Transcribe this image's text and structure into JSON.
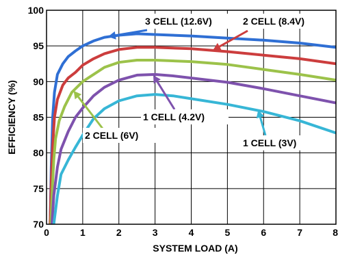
{
  "chart_data": {
    "type": "line",
    "title": "",
    "xlabel": "SYSTEM LOAD (A)",
    "ylabel": "EFFICIENCY (%)",
    "xlim": [
      0,
      8
    ],
    "ylim": [
      70,
      100
    ],
    "xticks": [
      "0",
      "1",
      "2",
      "3",
      "4",
      "5",
      "6",
      "7",
      "8"
    ],
    "yticks": [
      "70",
      "75",
      "80",
      "85",
      "90",
      "95",
      "100"
    ],
    "grid": true,
    "series": [
      {
        "name": "3 CELL (12.6V)",
        "color": "#2f6fd4",
        "points": [
          [
            0.1,
            70
          ],
          [
            0.13,
            78
          ],
          [
            0.17,
            85
          ],
          [
            0.22,
            88.5
          ],
          [
            0.3,
            91
          ],
          [
            0.45,
            92.5
          ],
          [
            0.6,
            93.5
          ],
          [
            0.8,
            94.3
          ],
          [
            1.0,
            95
          ],
          [
            1.3,
            95.7
          ],
          [
            1.6,
            96.2
          ],
          [
            2.0,
            96.5
          ],
          [
            2.5,
            96.7
          ],
          [
            3.0,
            96.6
          ],
          [
            4.0,
            96.4
          ],
          [
            5.0,
            96.1
          ],
          [
            6.0,
            95.8
          ],
          [
            7.0,
            95.4
          ],
          [
            8.0,
            94.8
          ]
        ]
      },
      {
        "name": "2 CELL (8.4V)",
        "color": "#cc3d3d",
        "points": [
          [
            0.1,
            70
          ],
          [
            0.13,
            76
          ],
          [
            0.17,
            81
          ],
          [
            0.22,
            85
          ],
          [
            0.3,
            87.5
          ],
          [
            0.45,
            89.5
          ],
          [
            0.6,
            90.5
          ],
          [
            0.8,
            91.3
          ],
          [
            1.0,
            92.3
          ],
          [
            1.3,
            93.2
          ],
          [
            1.6,
            93.9
          ],
          [
            2.0,
            94.5
          ],
          [
            2.5,
            94.8
          ],
          [
            3.0,
            94.8
          ],
          [
            4.0,
            94.6
          ],
          [
            5.0,
            94.2
          ],
          [
            6.0,
            93.7
          ],
          [
            7.0,
            93.2
          ],
          [
            8.0,
            92.5
          ]
        ]
      },
      {
        "name": "2 CELL (6V)",
        "color": "#9cc24a",
        "points": [
          [
            0.12,
            70
          ],
          [
            0.16,
            75
          ],
          [
            0.2,
            79
          ],
          [
            0.25,
            82
          ],
          [
            0.35,
            84.5
          ],
          [
            0.5,
            86.5
          ],
          [
            0.7,
            88.5
          ],
          [
            1.0,
            90
          ],
          [
            1.3,
            91
          ],
          [
            1.6,
            92
          ],
          [
            2.0,
            92.7
          ],
          [
            2.5,
            93
          ],
          [
            3.0,
            93
          ],
          [
            4.0,
            92.8
          ],
          [
            5.0,
            92.4
          ],
          [
            6.0,
            91.7
          ],
          [
            7.0,
            91
          ],
          [
            8.0,
            90.2
          ]
        ]
      },
      {
        "name": "1 CELL (4.2V)",
        "color": "#7e52ad",
        "points": [
          [
            0.15,
            70
          ],
          [
            0.2,
            74
          ],
          [
            0.3,
            78
          ],
          [
            0.4,
            80.5
          ],
          [
            0.6,
            83
          ],
          [
            0.8,
            85
          ],
          [
            1.0,
            86.3
          ],
          [
            1.3,
            88
          ],
          [
            1.6,
            89.2
          ],
          [
            2.0,
            90.2
          ],
          [
            2.5,
            90.9
          ],
          [
            3.0,
            91
          ],
          [
            3.5,
            90.8
          ],
          [
            4.0,
            90.5
          ],
          [
            5.0,
            89.9
          ],
          [
            6.0,
            89
          ],
          [
            7.0,
            88
          ],
          [
            8.0,
            87
          ]
        ]
      },
      {
        "name": "1 CELL (3V)",
        "color": "#37b6d6",
        "points": [
          [
            0.2,
            70
          ],
          [
            0.3,
            74
          ],
          [
            0.4,
            77
          ],
          [
            0.6,
            79
          ],
          [
            0.8,
            80.8
          ],
          [
            1.0,
            82.5
          ],
          [
            1.3,
            84.8
          ],
          [
            1.6,
            86.2
          ],
          [
            2.0,
            87.3
          ],
          [
            2.5,
            88
          ],
          [
            3.0,
            88.2
          ],
          [
            3.5,
            88
          ],
          [
            4.0,
            87.6
          ],
          [
            5.0,
            86.8
          ],
          [
            6.0,
            85.8
          ],
          [
            7.0,
            84.5
          ],
          [
            8.0,
            82.8
          ]
        ]
      }
    ],
    "annotations": [
      {
        "text": "3 CELL (12.6V)",
        "series": "3 CELL (12.6V)",
        "target": [
          1.7,
          96.3
        ]
      },
      {
        "text": "2 CELL (8.4V)",
        "series": "2 CELL (8.4V)",
        "target": [
          4.6,
          94.4
        ]
      },
      {
        "text": "2 CELL (6V)",
        "series": "2 CELL (6V)",
        "target": [
          0.75,
          88.7
        ]
      },
      {
        "text": "1 CELL (4.2V)",
        "series": "1 CELL (4.2V)",
        "target": [
          2.95,
          90.9
        ]
      },
      {
        "text": "1 CELL (3V)",
        "series": "1 CELL (3V)",
        "target": [
          5.85,
          86.0
        ]
      }
    ]
  }
}
